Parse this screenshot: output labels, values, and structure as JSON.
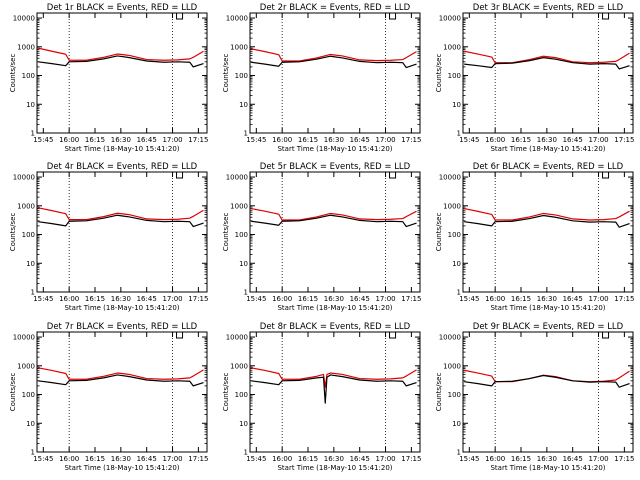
{
  "figure": {
    "series_colors": {
      "events": "#000000",
      "lld": "#e00000"
    },
    "x_tick_labels": [
      "15:45",
      "16:00",
      "16:15",
      "16:30",
      "16:45",
      "17:00",
      "17:15"
    ],
    "y_tick_labels": [
      "1",
      "10",
      "100",
      "1000",
      "10000"
    ],
    "ylabel": "Counts/sec",
    "xlabel": "Start Time (18-May-10 15:41:20)"
  },
  "chart_data": [
    {
      "type": "line",
      "title": "Det 1r BLACK = Events, RED = LLD",
      "xlabel": "Start Time (18-May-10 15:41:20)",
      "ylabel": "Counts/sec",
      "yscale": "log",
      "xlim": [
        "15:41:20",
        "17:20:00"
      ],
      "ylim": [
        1,
        15000
      ],
      "x": [
        "15:42",
        "15:50",
        "15:58",
        "16:00",
        "16:10",
        "16:20",
        "16:28",
        "16:35",
        "16:45",
        "16:55",
        "17:03",
        "17:10",
        "17:12",
        "17:18"
      ],
      "series": [
        {
          "name": "Events",
          "values": [
            300,
            260,
            220,
            300,
            310,
            380,
            480,
            420,
            320,
            290,
            300,
            290,
            200,
            260
          ]
        },
        {
          "name": "LLD",
          "values": [
            900,
            700,
            550,
            340,
            340,
            430,
            560,
            500,
            360,
            340,
            350,
            380,
            430,
            700
          ]
        }
      ],
      "markers": [
        "16:00",
        "17:00"
      ],
      "grid": false
    },
    {
      "type": "line",
      "title": "Det 2r BLACK = Events, RED = LLD",
      "xlabel": "Start Time (18-May-10 15:41:20)",
      "ylabel": "Counts/sec",
      "yscale": "log",
      "xlim": [
        "15:41:20",
        "17:20:00"
      ],
      "ylim": [
        1,
        15000
      ],
      "x": [
        "15:42",
        "15:50",
        "15:58",
        "16:00",
        "16:10",
        "16:20",
        "16:28",
        "16:35",
        "16:45",
        "16:55",
        "17:03",
        "17:10",
        "17:12",
        "17:18"
      ],
      "series": [
        {
          "name": "Events",
          "values": [
            290,
            250,
            210,
            290,
            300,
            370,
            470,
            410,
            310,
            280,
            290,
            280,
            190,
            250
          ]
        },
        {
          "name": "LLD",
          "values": [
            850,
            680,
            530,
            320,
            320,
            410,
            540,
            480,
            350,
            330,
            340,
            360,
            420,
            680
          ]
        }
      ],
      "markers": [
        "16:00",
        "17:00"
      ],
      "grid": false
    },
    {
      "type": "line",
      "title": "Det 3r BLACK = Events, RED = LLD",
      "xlabel": "Start Time (18-May-10 15:41:20)",
      "ylabel": "Counts/sec",
      "yscale": "log",
      "xlim": [
        "15:41:20",
        "17:20:00"
      ],
      "ylim": [
        1,
        15000
      ],
      "x": [
        "15:42",
        "15:50",
        "15:58",
        "16:00",
        "16:10",
        "16:20",
        "16:28",
        "16:35",
        "16:45",
        "16:55",
        "17:03",
        "17:10",
        "17:12",
        "17:18"
      ],
      "series": [
        {
          "name": "Events",
          "values": [
            250,
            220,
            190,
            260,
            270,
            330,
            420,
            370,
            280,
            250,
            260,
            250,
            170,
            220
          ]
        },
        {
          "name": "LLD",
          "values": [
            700,
            560,
            440,
            280,
            280,
            360,
            470,
            420,
            300,
            280,
            290,
            310,
            360,
            600
          ]
        }
      ],
      "markers": [
        "16:00",
        "17:00"
      ],
      "grid": false
    },
    {
      "type": "line",
      "title": "Det 4r BLACK = Events, RED = LLD",
      "xlabel": "Start Time (18-May-10 15:41:20)",
      "ylabel": "Counts/sec",
      "yscale": "log",
      "xlim": [
        "15:41:20",
        "17:20:00"
      ],
      "ylim": [
        1,
        15000
      ],
      "x": [
        "15:42",
        "15:50",
        "15:58",
        "16:00",
        "16:10",
        "16:20",
        "16:28",
        "16:35",
        "16:45",
        "16:55",
        "17:03",
        "17:10",
        "17:12",
        "17:18"
      ],
      "series": [
        {
          "name": "Events",
          "values": [
            280,
            240,
            200,
            290,
            300,
            370,
            470,
            410,
            310,
            280,
            290,
            280,
            190,
            250
          ]
        },
        {
          "name": "LLD",
          "values": [
            850,
            680,
            530,
            330,
            330,
            420,
            550,
            490,
            350,
            330,
            340,
            370,
            430,
            700
          ]
        }
      ],
      "markers": [
        "16:00",
        "17:00"
      ],
      "grid": false
    },
    {
      "type": "line",
      "title": "Det 5r BLACK = Events, RED = LLD",
      "xlabel": "Start Time (18-May-10 15:41:20)",
      "ylabel": "Counts/sec",
      "yscale": "log",
      "xlim": [
        "15:41:20",
        "17:20:00"
      ],
      "ylim": [
        1,
        15000
      ],
      "x": [
        "15:42",
        "15:50",
        "15:58",
        "16:00",
        "16:10",
        "16:20",
        "16:28",
        "16:35",
        "16:45",
        "16:55",
        "17:03",
        "17:10",
        "17:12",
        "17:18"
      ],
      "series": [
        {
          "name": "Events",
          "values": [
            290,
            250,
            210,
            290,
            300,
            370,
            470,
            410,
            310,
            280,
            290,
            280,
            190,
            250
          ]
        },
        {
          "name": "LLD",
          "values": [
            800,
            650,
            510,
            320,
            320,
            410,
            540,
            480,
            350,
            330,
            340,
            360,
            420,
            650
          ]
        }
      ],
      "markers": [
        "16:00",
        "17:00"
      ],
      "grid": false
    },
    {
      "type": "line",
      "title": "Det 6r BLACK = Events, RED = LLD",
      "xlabel": "Start Time (18-May-10 15:41:20)",
      "ylabel": "Counts/sec",
      "yscale": "log",
      "xlim": [
        "15:41:20",
        "17:20:00"
      ],
      "ylim": [
        1,
        15000
      ],
      "x": [
        "15:42",
        "15:50",
        "15:58",
        "16:00",
        "16:10",
        "16:20",
        "16:28",
        "16:35",
        "16:45",
        "16:55",
        "17:03",
        "17:10",
        "17:12",
        "17:18"
      ],
      "series": [
        {
          "name": "Events",
          "values": [
            280,
            240,
            200,
            280,
            290,
            360,
            460,
            400,
            300,
            270,
            280,
            270,
            180,
            240
          ]
        },
        {
          "name": "LLD",
          "values": [
            800,
            640,
            500,
            320,
            320,
            410,
            540,
            480,
            350,
            320,
            330,
            360,
            410,
            650
          ]
        }
      ],
      "markers": [
        "16:00",
        "17:00"
      ],
      "grid": false
    },
    {
      "type": "line",
      "title": "Det 7r BLACK = Events, RED = LLD",
      "xlabel": "Start Time (18-May-10 15:41:20)",
      "ylabel": "Counts/sec",
      "yscale": "log",
      "xlim": [
        "15:41:20",
        "17:20:00"
      ],
      "ylim": [
        1,
        15000
      ],
      "x": [
        "15:42",
        "15:50",
        "15:58",
        "16:00",
        "16:10",
        "16:20",
        "16:28",
        "16:35",
        "16:45",
        "16:55",
        "17:03",
        "17:10",
        "17:12",
        "17:18"
      ],
      "series": [
        {
          "name": "Events",
          "values": [
            300,
            260,
            220,
            300,
            310,
            380,
            480,
            420,
            320,
            290,
            300,
            290,
            200,
            260
          ]
        },
        {
          "name": "LLD",
          "values": [
            850,
            690,
            540,
            340,
            340,
            430,
            560,
            500,
            360,
            340,
            350,
            380,
            440,
            720
          ]
        }
      ],
      "markers": [
        "16:00",
        "17:00"
      ],
      "grid": false
    },
    {
      "type": "line",
      "title": "Det 8r BLACK = Events, RED = LLD",
      "xlabel": "Start Time (18-May-10 15:41:20)",
      "ylabel": "Counts/sec",
      "yscale": "log",
      "xlim": [
        "15:41:20",
        "17:20:00"
      ],
      "ylim": [
        1,
        15000
      ],
      "x": [
        "15:42",
        "15:50",
        "15:58",
        "16:00",
        "16:10",
        "16:20",
        "16:24",
        "16:25",
        "16:26",
        "16:28",
        "16:35",
        "16:45",
        "16:55",
        "17:03",
        "17:10",
        "17:12",
        "17:18"
      ],
      "series": [
        {
          "name": "Events",
          "values": [
            300,
            260,
            220,
            300,
            310,
            380,
            400,
            50,
            400,
            480,
            420,
            320,
            290,
            300,
            290,
            200,
            260
          ]
        },
        {
          "name": "LLD",
          "values": [
            850,
            690,
            540,
            340,
            340,
            430,
            500,
            180,
            500,
            560,
            500,
            360,
            340,
            350,
            380,
            440,
            720
          ]
        }
      ],
      "markers": [
        "16:00",
        "17:00"
      ],
      "grid": false
    },
    {
      "type": "line",
      "title": "Det 9r BLACK = Events, RED = LLD",
      "xlabel": "Start Time (18-May-10 15:41:20)",
      "ylabel": "Counts/sec",
      "yscale": "log",
      "xlim": [
        "15:41:20",
        "17:20:00"
      ],
      "ylim": [
        1,
        15000
      ],
      "x": [
        "15:42",
        "15:50",
        "15:58",
        "16:00",
        "16:10",
        "16:20",
        "16:28",
        "16:35",
        "16:45",
        "16:55",
        "17:03",
        "17:10",
        "17:12",
        "17:18"
      ],
      "series": [
        {
          "name": "Events",
          "values": [
            280,
            240,
            200,
            280,
            290,
            360,
            460,
            400,
            300,
            270,
            280,
            270,
            180,
            240
          ]
        },
        {
          "name": "LLD",
          "values": [
            700,
            560,
            440,
            280,
            280,
            360,
            470,
            420,
            300,
            280,
            290,
            320,
            380,
            650
          ]
        }
      ],
      "markers": [
        "16:00",
        "17:00"
      ],
      "grid": false
    }
  ]
}
